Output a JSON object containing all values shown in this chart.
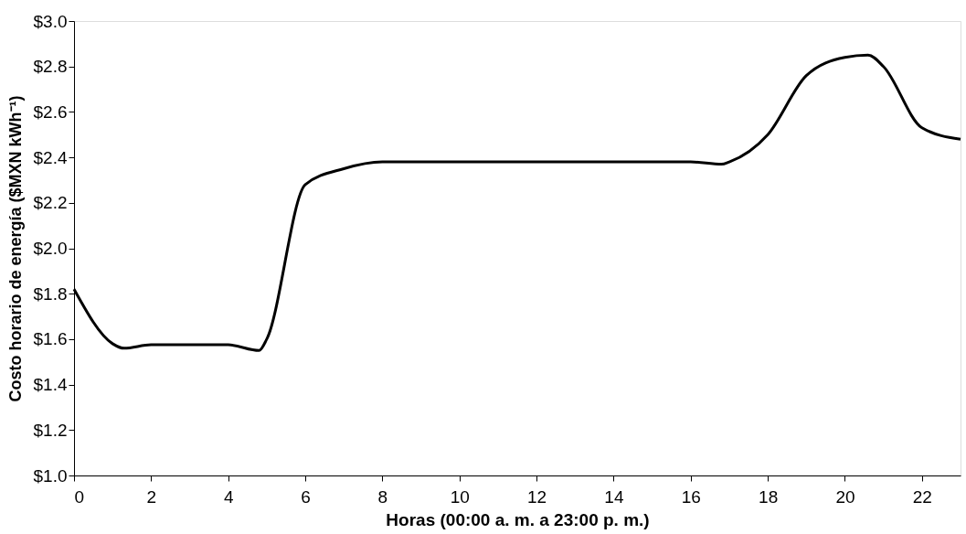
{
  "chart_data": {
    "type": "line",
    "xlabel": "Horas (00:00 a. m. a 23:00 p. m.)",
    "ylabel": "Costo horario de energía ($MXN kWh⁻¹)",
    "xlim": [
      0,
      23
    ],
    "xticks": [
      0,
      2,
      4,
      6,
      8,
      10,
      12,
      14,
      16,
      18,
      20,
      22
    ],
    "ylim": [
      1.0,
      3.0
    ],
    "yticks": [
      {
        "value": 1.0,
        "label": "$1.0"
      },
      {
        "value": 1.2,
        "label": "$1.2"
      },
      {
        "value": 1.4,
        "label": "$1.4"
      },
      {
        "value": 1.6,
        "label": "$1.6"
      },
      {
        "value": 1.8,
        "label": "$1.8"
      },
      {
        "value": 2.0,
        "label": "$2.0"
      },
      {
        "value": 2.2,
        "label": "$2.2"
      },
      {
        "value": 2.4,
        "label": "$2.4"
      },
      {
        "value": 2.6,
        "label": "$2.6"
      },
      {
        "value": 2.8,
        "label": "$2.8"
      },
      {
        "value": 3.0,
        "label": "$3.0"
      }
    ],
    "grid": false,
    "marker": "none",
    "line_style": "solid",
    "series": [
      {
        "color": "#000000",
        "x": [
          0,
          1,
          1.3,
          2,
          3,
          4,
          4.8,
          5,
          6,
          7,
          8,
          9,
          10,
          11,
          12,
          13,
          14,
          15,
          16,
          16.8,
          17,
          18,
          19,
          20,
          20.6,
          21,
          22,
          23
        ],
        "values": [
          1.82,
          1.58,
          1.56,
          1.575,
          1.575,
          1.575,
          1.55,
          1.6,
          2.28,
          2.35,
          2.38,
          2.38,
          2.38,
          2.38,
          2.38,
          2.38,
          2.38,
          2.38,
          2.38,
          2.37,
          2.38,
          2.5,
          2.76,
          2.84,
          2.85,
          2.8,
          2.53,
          2.48
        ]
      }
    ]
  }
}
